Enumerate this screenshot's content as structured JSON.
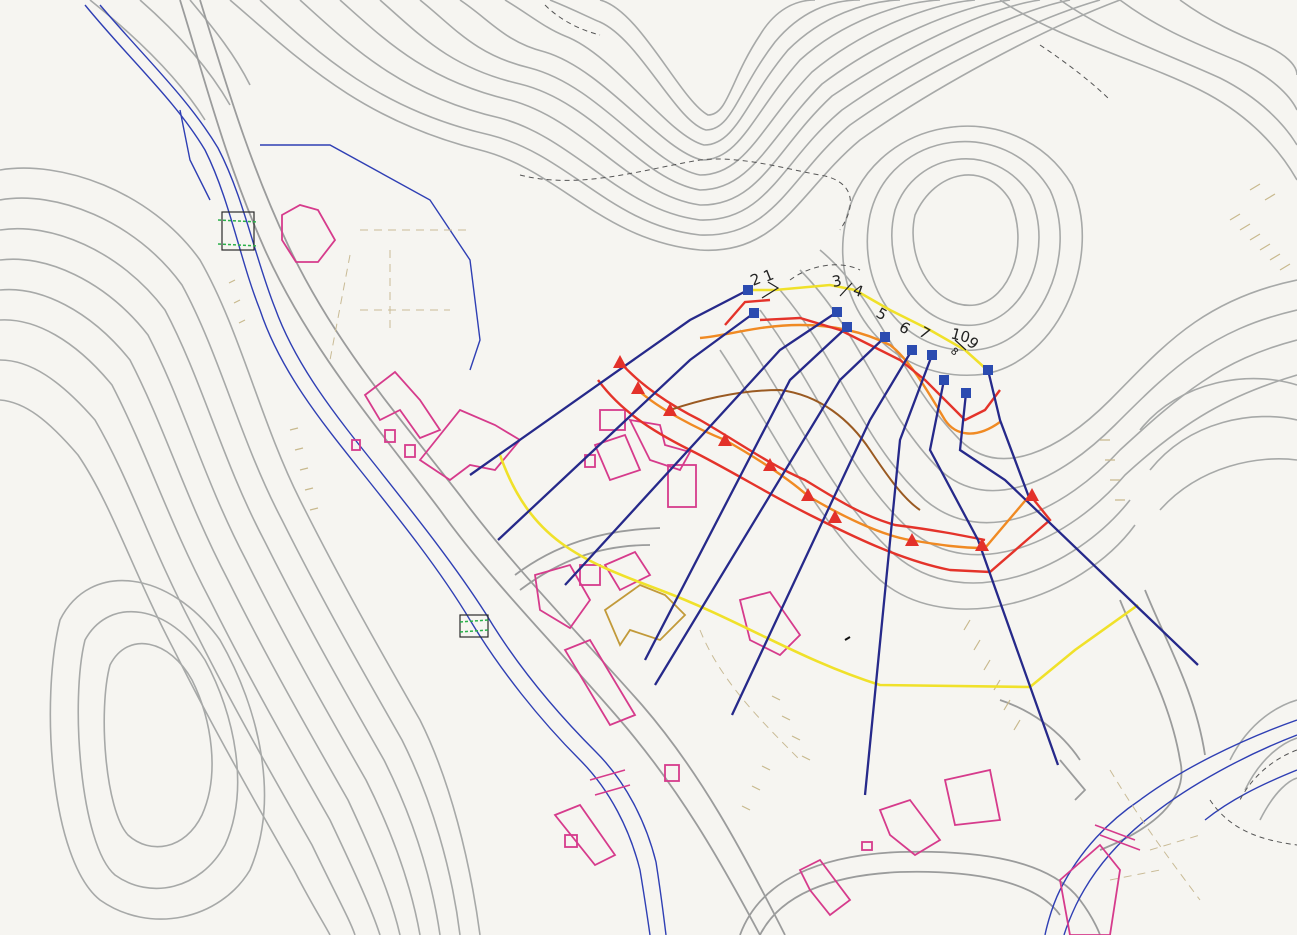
{
  "map": {
    "profile_labels": [
      {
        "id": "1",
        "text": "1"
      },
      {
        "id": "2",
        "text": "2"
      },
      {
        "id": "3",
        "text": "3"
      },
      {
        "id": "4",
        "text": "4"
      },
      {
        "id": "5",
        "text": "5"
      },
      {
        "id": "6",
        "text": "6"
      },
      {
        "id": "7",
        "text": "7"
      },
      {
        "id": "8",
        "text": "8"
      },
      {
        "id": "9",
        "text": "9"
      },
      {
        "id": "10",
        "text": "10"
      }
    ],
    "colors": {
      "contour": "#a7a9a8",
      "river": "#2f3fb4",
      "building": "#d63b8c",
      "profile_ray": "#26298a",
      "source_square": "#2b4bb0",
      "triangle": "#e3312a",
      "yellow_zone": "#f0e12a",
      "orange_zone": "#f08a23",
      "red_zone": "#e4332a",
      "brown_line": "#9a5a22"
    }
  }
}
